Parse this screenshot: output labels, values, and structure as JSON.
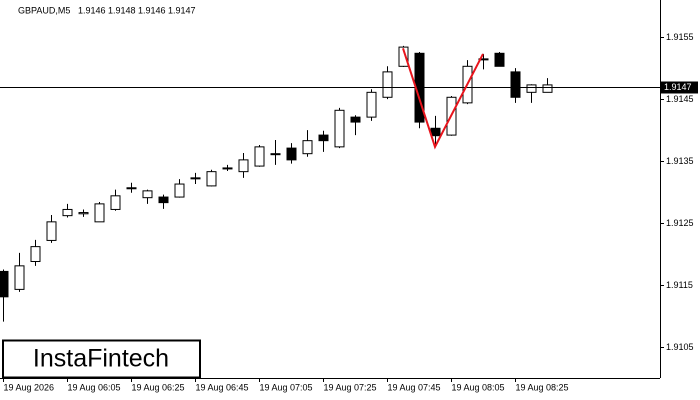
{
  "chart_data": {
    "type": "candlestick",
    "symbol": "GBPAUD,M5",
    "header_ohlc": [
      1.9146,
      1.9148,
      1.9146,
      1.9147
    ],
    "logo": "InstaFintech",
    "categories": [
      "19 Aug 2026",
      null,
      null,
      null,
      "19 Aug 06:05",
      null,
      null,
      null,
      "19 Aug 06:25",
      null,
      null,
      null,
      "19 Aug 06:45",
      null,
      null,
      null,
      "19 Aug 07:05",
      null,
      null,
      null,
      "19 Aug 07:25",
      null,
      null,
      null,
      "19 Aug 07:45",
      null,
      null,
      null,
      "19 Aug 08:05",
      null,
      null,
      null,
      "19 Aug 08:25",
      null,
      null
    ],
    "open": [
      1.91172,
      1.91143,
      1.91188,
      1.91222,
      1.91262,
      1.91265,
      1.91252,
      1.91272,
      1.91307,
      1.91291,
      1.91292,
      1.91292,
      1.91323,
      1.9131,
      1.91339,
      1.91333,
      1.91342,
      1.91362,
      1.91371,
      1.91362,
      1.91392,
      1.91373,
      1.91421,
      1.91421,
      1.91453,
      1.91503,
      1.91524,
      1.91403,
      1.91392,
      1.91444,
      1.91515,
      1.91524,
      1.91494,
      1.91461,
      1.91461
    ],
    "high": [
      1.91175,
      1.91202,
      1.91223,
      1.91263,
      1.91281,
      1.91272,
      1.91284,
      1.91304,
      1.91315,
      1.91304,
      1.91296,
      1.91321,
      1.91331,
      1.91336,
      1.91344,
      1.91363,
      1.91376,
      1.91384,
      1.91379,
      1.914,
      1.91399,
      1.91436,
      1.91424,
      1.91466,
      1.91503,
      1.91536,
      1.91526,
      1.91423,
      1.91455,
      1.91513,
      1.91523,
      1.91526,
      1.915,
      1.91474,
      1.91484
    ],
    "low": [
      1.91091,
      1.91139,
      1.91181,
      1.91218,
      1.91259,
      1.9126,
      1.91252,
      1.9127,
      1.91299,
      1.91281,
      1.91273,
      1.91291,
      1.91313,
      1.91309,
      1.91334,
      1.91323,
      1.91341,
      1.91344,
      1.91346,
      1.91357,
      1.91365,
      1.91371,
      1.91392,
      1.91415,
      1.9145,
      1.91502,
      1.91403,
      1.91373,
      1.91391,
      1.91442,
      1.91498,
      1.91503,
      1.91444,
      1.91444,
      1.91461
    ],
    "close": [
      1.91131,
      1.91181,
      1.91212,
      1.91252,
      1.91272,
      1.91267,
      1.91281,
      1.91294,
      1.91307,
      1.91302,
      1.91283,
      1.91313,
      1.91323,
      1.91333,
      1.91339,
      1.91352,
      1.91373,
      1.91362,
      1.91352,
      1.91383,
      1.91383,
      1.91432,
      1.91413,
      1.91461,
      1.91494,
      1.91534,
      1.91413,
      1.91391,
      1.91453,
      1.91503,
      1.91515,
      1.91503,
      1.91453,
      1.91473,
      1.91473
    ],
    "up_color": "#ffffff",
    "down_color": "#000000",
    "current_price": 1.9147,
    "pattern": {
      "color": "#e8141c",
      "points": [
        {
          "x": 25,
          "y": 1.91532
        },
        {
          "x": 27,
          "y": 1.91373
        },
        {
          "x": 30,
          "y": 1.91523
        }
      ]
    },
    "ylim": [
      1.91,
      1.9161
    ],
    "yticks": [
      1.9155,
      1.9145,
      1.9135,
      1.9125,
      1.9115,
      1.9105
    ]
  }
}
